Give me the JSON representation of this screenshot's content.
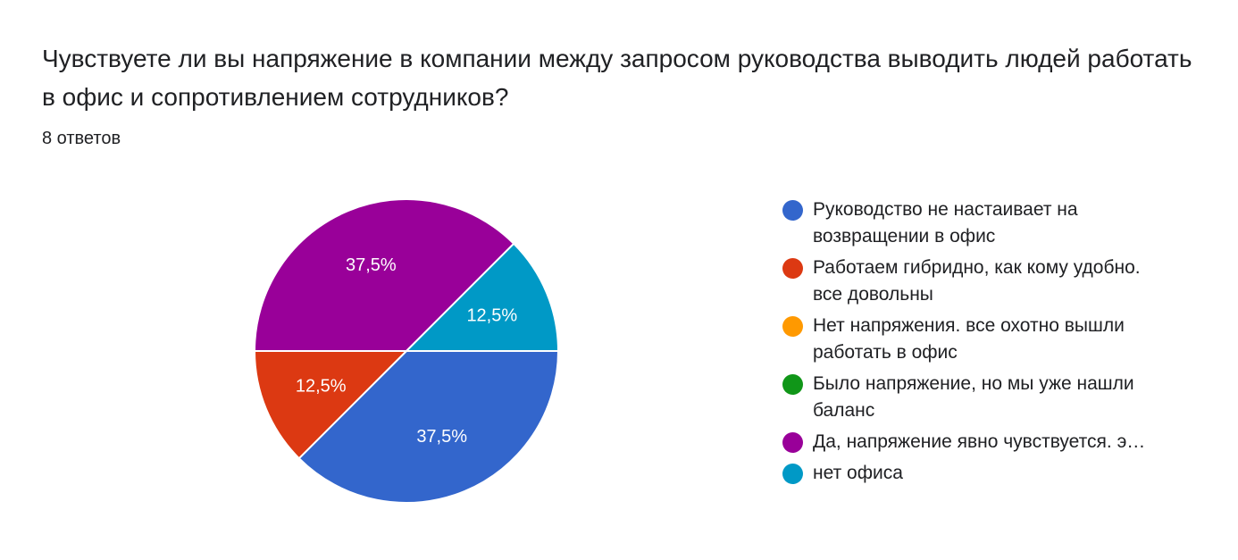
{
  "question": {
    "title": "Чувствуете ли вы напряжение в компании между запросом руководства выводить людей работать в офис и сопротивлением сотрудников?",
    "responses": "8 ответов"
  },
  "chart_data": {
    "type": "pie",
    "title": "Чувствуете ли вы напряжение в компании между запросом руководства выводить людей работать в офис и сопротивлением сотрудников?",
    "subtitle": "8 ответов",
    "legend_position": "right",
    "slices": [
      {
        "label": "Руководство не настаивает на\nвозвращении в офис",
        "value": 37.5,
        "display": "37,5%",
        "color": "#3366cc"
      },
      {
        "label": "Работаем гибридно, как кому удобно.\nвсе довольны",
        "value": 12.5,
        "display": "12,5%",
        "color": "#dc3912"
      },
      {
        "label": "Нет напряжения. все охотно вышли\nработать в офис",
        "value": 0,
        "display": "",
        "color": "#ff9900"
      },
      {
        "label": "Было напряжение, но мы уже нашли\nбаланс",
        "value": 0,
        "display": "",
        "color": "#109618"
      },
      {
        "label": "Да, напряжение явно чувствуется. э…",
        "value": 37.5,
        "display": "37,5%",
        "color": "#990099"
      },
      {
        "label": "нет офиса",
        "value": 12.5,
        "display": "12,5%",
        "color": "#0099c6"
      }
    ]
  }
}
